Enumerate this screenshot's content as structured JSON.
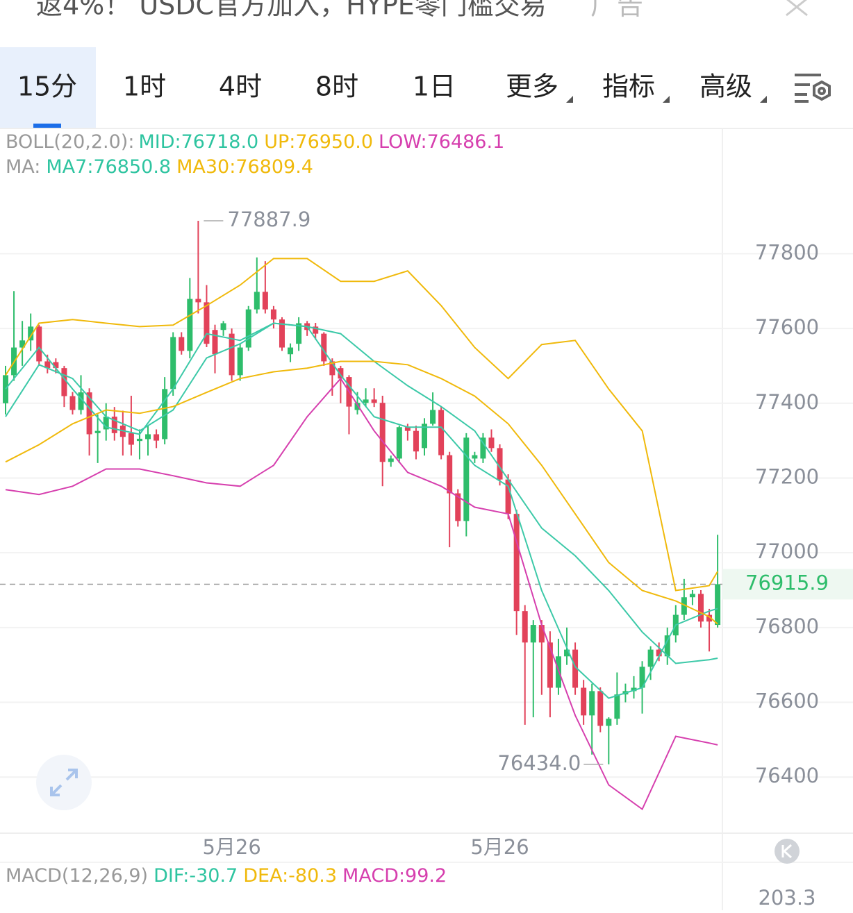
{
  "banner": {
    "text": "返4%！ USDC官方加入，HYPE零门槛交易",
    "ad": "广告"
  },
  "tabs": [
    "15分",
    "1时",
    "4时",
    "8时",
    "1日",
    "更多",
    "指标",
    "高级"
  ],
  "active_tab": 0,
  "boll": {
    "label": "BOLL(20,2.0):",
    "mid": "MID:76718.0",
    "up": "UP:76950.0",
    "low": "LOW:76486.1"
  },
  "ma": {
    "label": "MA:",
    "ma7": "MA7:76850.8",
    "ma30": "MA30:76809.4"
  },
  "macd": {
    "label": "MACD(12,26,9)",
    "dif": "DIF:-30.7",
    "dea": "DEA:-80.3",
    "macd": "MACD:99.2",
    "axis_value": "203.3"
  },
  "chart_data": {
    "type": "candlestick",
    "up_color": "#2ebd6b",
    "down_color": "#e2425a",
    "categories": [
      null,
      null,
      null,
      null,
      null,
      null,
      null,
      null,
      null,
      null,
      null,
      null,
      null,
      null,
      null,
      null,
      null,
      null,
      null,
      null,
      null,
      null,
      null,
      null,
      null,
      null,
      null,
      "5月26",
      null,
      null,
      null,
      null,
      null,
      null,
      null,
      null,
      null,
      null,
      null,
      null,
      null,
      null,
      null,
      null,
      null,
      null,
      null,
      null,
      null,
      null,
      null,
      null,
      null,
      null,
      null,
      null,
      null,
      null,
      null,
      "5月26",
      null,
      null,
      null,
      null,
      null,
      null,
      null,
      null,
      null,
      null,
      null,
      null,
      null,
      null,
      null,
      null,
      null,
      null,
      null,
      null,
      null,
      null,
      null,
      null,
      null,
      null
    ],
    "open": [
      77400,
      77475,
      77549,
      77568,
      77605,
      77512,
      77510,
      77494,
      77419,
      77382,
      77429,
      77320,
      77330,
      77364,
      77340,
      77320,
      77299,
      77304,
      77317,
      77304,
      77438,
      77577,
      77540,
      77679,
      77670,
      77596,
      77596,
      77586,
      77475,
      77549,
      77651,
      77698,
      77651,
      77624,
      77531,
      77559,
      77614,
      77605,
      77586,
      77512,
      77494,
      77470,
      77382,
      77401,
      77410,
      77401,
      77243,
      77252,
      77336,
      77326,
      77280,
      77345,
      77382,
      77261,
      77159,
      77085,
      77252,
      77252,
      77308,
      77280,
      77196,
      77104,
      76844,
      76760,
      76807,
      76760,
      76639,
      76723,
      76741,
      76639,
      76565,
      76630,
      76537,
      76556,
      76621,
      76630,
      76639,
      76695,
      76741,
      76723,
      76779,
      76834,
      76881,
      76890,
      76834,
      76807
    ],
    "high": [
      77500,
      77700,
      77620,
      77640,
      77610,
      77530,
      77520,
      77500,
      77430,
      77475,
      77440,
      77370,
      77400,
      77390,
      77380,
      77420,
      77330,
      77340,
      77330,
      77470,
      77590,
      77590,
      77735,
      77887.9,
      77716,
      77610,
      77620,
      77600,
      77560,
      77660,
      77790,
      77780,
      77660,
      77630,
      77560,
      77630,
      77620,
      77615,
      77590,
      77520,
      77500,
      77475,
      77430,
      77440,
      77440,
      77420,
      77260,
      77340,
      77345,
      77340,
      77360,
      77429,
      77390,
      77270,
      77170,
      77320,
      77270,
      77320,
      77330,
      77290,
      77210,
      77115,
      76860,
      76820,
      76820,
      76790,
      76770,
      76800,
      76760,
      76660,
      76650,
      76640,
      76560,
      76680,
      76650,
      76670,
      76710,
      76750,
      76760,
      76800,
      76860,
      76930,
      76900,
      76900,
      76850,
      77048
    ],
    "low": [
      77370,
      77460,
      77500,
      77540,
      77500,
      77480,
      77480,
      77390,
      77370,
      77370,
      77260,
      77240,
      77300,
      77300,
      77260,
      77260,
      77250,
      77260,
      77280,
      77290,
      77420,
      77530,
      77520,
      77640,
      77550,
      77480,
      77580,
      77460,
      77460,
      77540,
      77640,
      77640,
      77600,
      77540,
      77510,
      77540,
      77580,
      77570,
      77500,
      77420,
      77400,
      77317,
      77370,
      77390,
      77390,
      77178,
      77230,
      77240,
      77300,
      77250,
      77260,
      77340,
      77250,
      77015,
      77070,
      77044,
      77240,
      77240,
      77270,
      77180,
      77090,
      76780,
      76540,
      76560,
      76620,
      76560,
      76620,
      76700,
      76620,
      76540,
      76460,
      76520,
      76434,
      76540,
      76600,
      76610,
      76570,
      76660,
      76710,
      76700,
      76760,
      76820,
      76860,
      76800,
      76736,
      76800
    ],
    "close": [
      77475,
      77549,
      77568,
      77605,
      77512,
      77494,
      77494,
      77419,
      77382,
      77429,
      77317,
      77326,
      77364,
      77320,
      77310,
      77289,
      77305,
      77317,
      77300,
      77438,
      77577,
      77540,
      77679,
      77670,
      77559,
      77531,
      77614,
      77475,
      77549,
      77651,
      77698,
      77651,
      77624,
      77549,
      77549,
      77614,
      77596,
      77586,
      77512,
      77475,
      77466,
      77391,
      77401,
      77410,
      77401,
      77243,
      77252,
      77336,
      77326,
      77271,
      77345,
      77382,
      77261,
      77159,
      77085,
      77308,
      77261,
      77308,
      77280,
      77196,
      77104,
      76844,
      76760,
      76807,
      76760,
      76639,
      76723,
      76741,
      76639,
      76565,
      76630,
      76537,
      76556,
      76621,
      76630,
      76639,
      76695,
      76741,
      76723,
      76779,
      76834,
      76881,
      76890,
      76816,
      76816,
      76915.9
    ],
    "overlay_x": [
      0,
      4,
      8,
      12,
      16,
      20,
      24,
      28,
      32,
      36,
      40,
      44,
      48,
      52,
      56,
      60,
      64,
      68,
      72,
      76,
      80,
      84,
      85
    ],
    "overlays": [
      {
        "color": "#f0b90b",
        "values": [
          77475,
          77614,
          77624,
          77614,
          77605,
          77609,
          77661,
          77716,
          77787,
          77787,
          77726,
          77726,
          77754,
          77661,
          77549,
          77466,
          77557,
          77568,
          77438,
          77326,
          76899,
          76912,
          76950
        ]
      },
      {
        "color": "#3cc9a8",
        "values": [
          77364,
          77503,
          77466,
          77364,
          77326,
          77382,
          77521,
          77559,
          77614,
          77605,
          77586,
          77512,
          77447,
          77391,
          77326,
          77196,
          77066,
          76992,
          76899,
          76788,
          76704,
          76714,
          76718
        ]
      },
      {
        "color": "#d63fae",
        "values": [
          77169,
          77156,
          77178,
          77224,
          77224,
          77206,
          77187,
          77178,
          77234,
          77364,
          77466,
          77326,
          77215,
          77178,
          77122,
          77104,
          76807,
          76565,
          76379,
          76314,
          76509,
          76491,
          76486.1
        ]
      },
      {
        "color": "#3cc9a8",
        "values": [
          77438,
          77549,
          77438,
          77336,
          77317,
          77438,
          77586,
          77568,
          77614,
          77605,
          77475,
          77364,
          77336,
          77336,
          77234,
          77178,
          76899,
          76695,
          76611,
          76639,
          76807,
          76844,
          76850.8
        ]
      },
      {
        "color": "#f0b90b",
        "values": [
          77243,
          77289,
          77345,
          77382,
          77373,
          77391,
          77429,
          77466,
          77484,
          77494,
          77512,
          77512,
          77503,
          77466,
          77419,
          77345,
          77234,
          77104,
          76974,
          76899,
          76871,
          76829,
          76809.4
        ]
      }
    ],
    "last_price": 76915.9,
    "annotations": [
      {
        "text": "77887.9"
      },
      {
        "text": "76434.0"
      }
    ],
    "ylim": [
      76250,
      78135
    ],
    "yticks": [
      76400,
      76600,
      76800,
      77000,
      77200,
      77400,
      77600,
      77800
    ],
    "grid": true
  }
}
